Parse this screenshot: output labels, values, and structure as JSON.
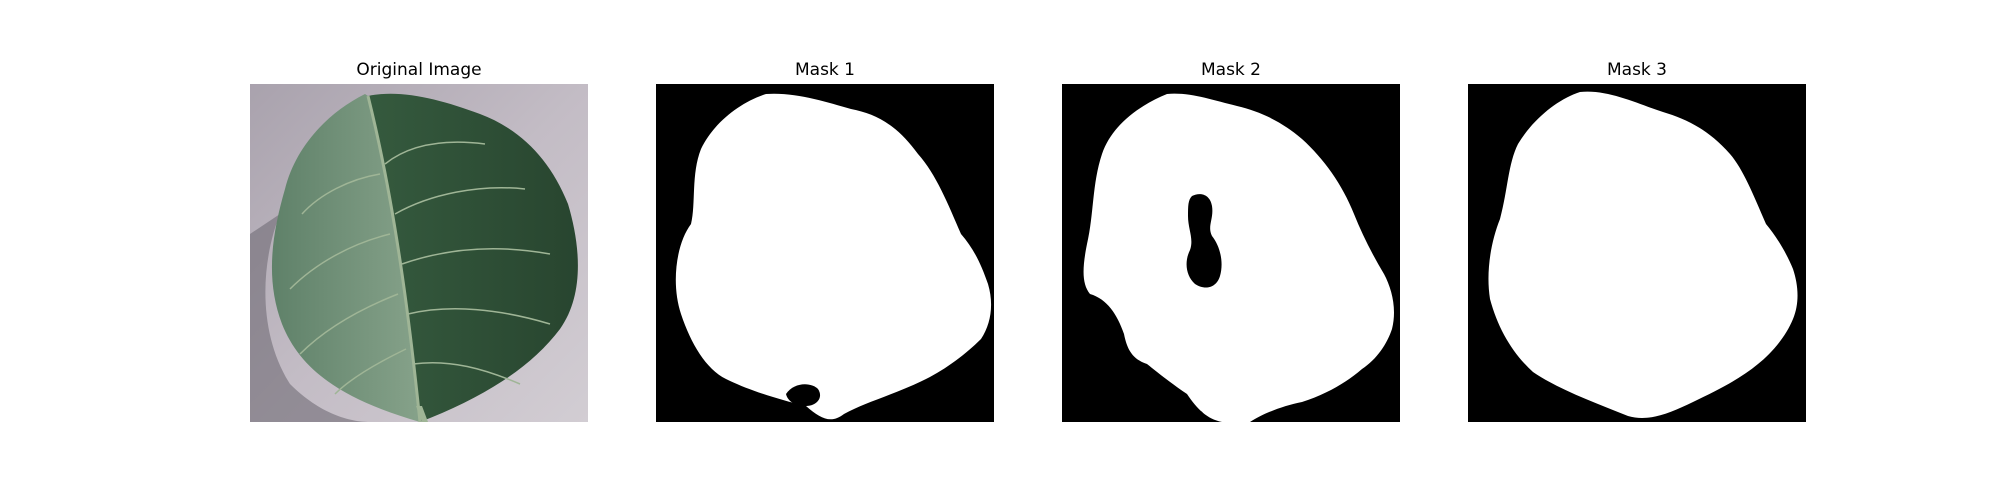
{
  "panels": [
    {
      "title": "Original Image",
      "kind": "leaf-photo"
    },
    {
      "title": "Mask 1",
      "kind": "mask"
    },
    {
      "title": "Mask 2",
      "kind": "mask"
    },
    {
      "title": "Mask 3",
      "kind": "mask"
    }
  ],
  "colors": {
    "background": "#ffffff",
    "mask_background": "#000000",
    "mask_foreground": "#ffffff",
    "photo_background": "#b9b2bb",
    "leaf_dark": "#2f4c36",
    "leaf_mid": "#4e6e55",
    "leaf_light": "#7f9a84",
    "leaf_vein": "#9fb596"
  }
}
